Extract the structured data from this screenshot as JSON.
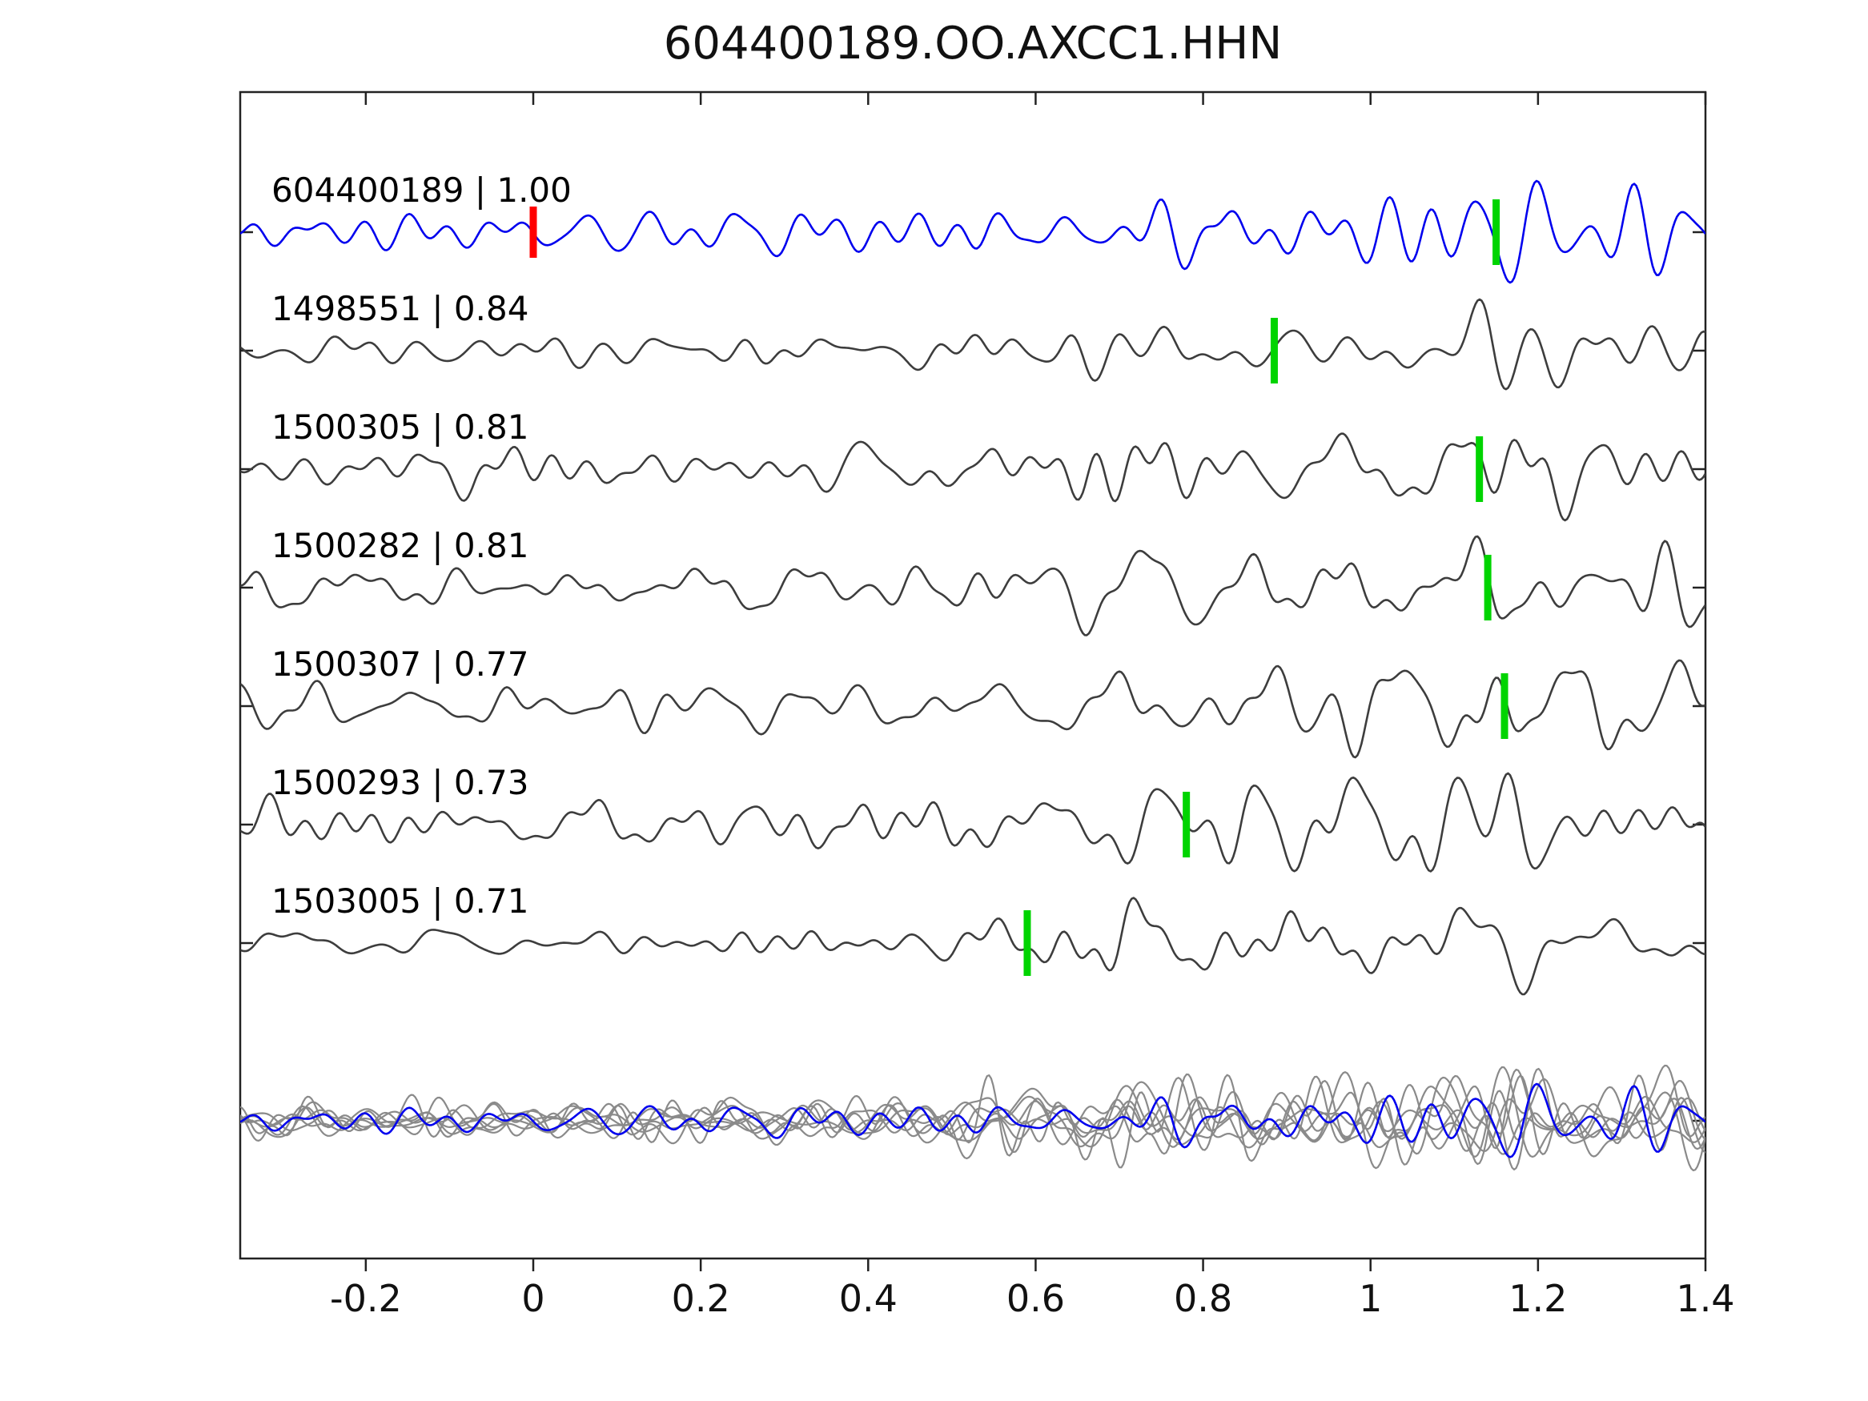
{
  "title": "604400189.OO.AXCC1.HHN",
  "chart_data": {
    "type": "line",
    "title": "604400189.OO.AXCC1.HHN",
    "xlabel": "",
    "ylabel": "",
    "xlim": [
      -0.35,
      1.4
    ],
    "x_ticks": [
      -0.2,
      0,
      0.2,
      0.4,
      0.6,
      0.8,
      1,
      1.2,
      1.4
    ],
    "x_tick_labels": [
      "-0.2",
      "0",
      "0.2",
      "0.4",
      "0.6",
      "0.8",
      "1",
      "1.2",
      "1.4"
    ],
    "grid": false,
    "legend": null,
    "colors": {
      "trace_highlight": "#0000ee",
      "trace_default": "#3d3d3d",
      "pick_marker": "#00d400",
      "origin_marker": "#ff0000",
      "overlay_gray": "#8a8a8a",
      "axis": "#222222",
      "background": "#ffffff"
    },
    "traces": [
      {
        "id": "604400189",
        "label": "604400189 | 1.00",
        "correlation": 1.0,
        "color": "#0000ee",
        "markers": [
          {
            "x": 0.0,
            "type": "origin"
          },
          {
            "x": 1.15,
            "type": "pick"
          }
        ]
      },
      {
        "id": "1498551",
        "label": "1498551 | 0.84",
        "correlation": 0.84,
        "color": "#3d3d3d",
        "markers": [
          {
            "x": 0.885,
            "type": "pick"
          }
        ]
      },
      {
        "id": "1500305",
        "label": "1500305 | 0.81",
        "correlation": 0.81,
        "color": "#3d3d3d",
        "markers": [
          {
            "x": 1.13,
            "type": "pick"
          }
        ]
      },
      {
        "id": "1500282",
        "label": "1500282 | 0.81",
        "correlation": 0.81,
        "color": "#3d3d3d",
        "markers": [
          {
            "x": 1.14,
            "type": "pick"
          }
        ]
      },
      {
        "id": "1500307",
        "label": "1500307 | 0.77",
        "correlation": 0.77,
        "color": "#3d3d3d",
        "markers": [
          {
            "x": 1.16,
            "type": "pick"
          }
        ]
      },
      {
        "id": "1500293",
        "label": "1500293 | 0.73",
        "correlation": 0.73,
        "color": "#3d3d3d",
        "markers": [
          {
            "x": 0.78,
            "type": "pick"
          }
        ]
      },
      {
        "id": "1503005",
        "label": "1503005 | 0.71",
        "correlation": 0.71,
        "color": "#3d3d3d",
        "markers": [
          {
            "x": 0.59,
            "type": "pick"
          }
        ]
      }
    ],
    "overlay": {
      "description": "stack of all matched traces overlaid",
      "gray_trace_count": 7,
      "gray_color": "#8a8a8a",
      "highlight_color": "#0000ee"
    }
  }
}
